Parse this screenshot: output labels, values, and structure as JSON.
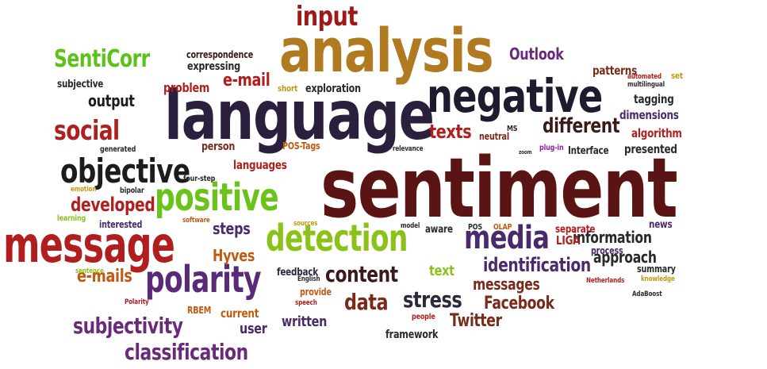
{
  "word_cloud": {
    "words": [
      {
        "id": "sentiment",
        "text": "sentiment",
        "color": "#5a1414"
      },
      {
        "id": "language",
        "text": "language",
        "color": "#2a1f3d"
      },
      {
        "id": "analysis",
        "text": "analysis",
        "color": "#b07a20"
      },
      {
        "id": "negative",
        "text": "negative",
        "color": "#1c1c2e"
      },
      {
        "id": "message",
        "text": "message",
        "color": "#b01e1e"
      },
      {
        "id": "positive",
        "text": "positive",
        "color": "#6bc21a"
      },
      {
        "id": "detection",
        "text": "detection",
        "color": "#8bc21a"
      },
      {
        "id": "objective",
        "text": "objective",
        "color": "#1c1c1c"
      },
      {
        "id": "polarity",
        "text": "polarity",
        "color": "#5a2a7a"
      },
      {
        "id": "media",
        "text": "media",
        "color": "#4a2a6a"
      },
      {
        "id": "input",
        "text": "input",
        "color": "#a01818"
      },
      {
        "id": "senticorr",
        "text": "SentiCorr",
        "color": "#5cc21a"
      },
      {
        "id": "social",
        "text": "social",
        "color": "#b01e1e"
      },
      {
        "id": "different",
        "text": "different",
        "color": "#3a1a1a"
      },
      {
        "id": "content",
        "text": "content",
        "color": "#3a1a1a"
      },
      {
        "id": "classification",
        "text": "classification",
        "color": "#6a2a7a"
      },
      {
        "id": "subjectivity",
        "text": "subjectivity",
        "color": "#6a2a7a"
      },
      {
        "id": "stress",
        "text": "stress",
        "color": "#2a2a3a"
      },
      {
        "id": "data",
        "text": "data",
        "color": "#7a2a1a"
      },
      {
        "id": "developed",
        "text": "developed",
        "color": "#b01e1e"
      },
      {
        "id": "identification",
        "text": "identification",
        "color": "#4a2a6a"
      },
      {
        "id": "texts",
        "text": "texts",
        "color": "#b01e1e"
      },
      {
        "id": "output",
        "text": "output",
        "color": "#1c1c1c"
      },
      {
        "id": "e-mail",
        "text": "e-mail",
        "color": "#b01e1e"
      },
      {
        "id": "e-mails",
        "text": "e-mails",
        "color": "#c05a10"
      },
      {
        "id": "hyves",
        "text": "Hyves",
        "color": "#c05a10"
      },
      {
        "id": "facebook",
        "text": "Facebook",
        "color": "#7a2a1a"
      },
      {
        "id": "twitter",
        "text": "Twitter",
        "color": "#7a2a1a"
      },
      {
        "id": "messages",
        "text": "messages",
        "color": "#7a2a1a"
      },
      {
        "id": "information",
        "text": "information",
        "color": "#2a2a2a"
      },
      {
        "id": "approach",
        "text": "approach",
        "color": "#2a2a2a"
      },
      {
        "id": "outlook",
        "text": "Outlook",
        "color": "#6a2a7a"
      },
      {
        "id": "written",
        "text": "written",
        "color": "#4a2a6a"
      },
      {
        "id": "steps",
        "text": "steps",
        "color": "#4a2a6a"
      },
      {
        "id": "text",
        "text": "text",
        "color": "#8bc21a"
      },
      {
        "id": "user",
        "text": "user",
        "color": "#4a2a6a"
      },
      {
        "id": "problem",
        "text": "problem",
        "color": "#b01e1e"
      },
      {
        "id": "exploration",
        "text": "exploration",
        "color": "#2a2a2a"
      },
      {
        "id": "subjective",
        "text": "subjective",
        "color": "#2a2a2a"
      },
      {
        "id": "expressing",
        "text": "expressing",
        "color": "#2a2a2a"
      },
      {
        "id": "correspondence",
        "text": "correspondence",
        "color": "#3a1a1a"
      },
      {
        "id": "patterns",
        "text": "patterns",
        "color": "#7a2a1a"
      },
      {
        "id": "tagging",
        "text": "tagging",
        "color": "#2a2a2a"
      },
      {
        "id": "dimensions",
        "text": "dimensions",
        "color": "#4a2a6a"
      },
      {
        "id": "algorithm",
        "text": "algorithm",
        "color": "#b01e1e"
      },
      {
        "id": "presented",
        "text": "presented",
        "color": "#2a2a2a"
      },
      {
        "id": "languages",
        "text": "languages",
        "color": "#b01e1e"
      },
      {
        "id": "person",
        "text": "person",
        "color": "#7a2a1a"
      },
      {
        "id": "pos-tags",
        "text": "POS-Tags",
        "color": "#c05a10"
      },
      {
        "id": "short",
        "text": "short",
        "color": "#c09a10"
      },
      {
        "id": "interested",
        "text": "interested",
        "color": "#4a2a6a"
      },
      {
        "id": "liga",
        "text": "LIGA",
        "color": "#b01e1e"
      },
      {
        "id": "separate",
        "text": "separate",
        "color": "#b01e1e"
      },
      {
        "id": "news",
        "text": "news",
        "color": "#4a2a6a"
      },
      {
        "id": "current",
        "text": "current",
        "color": "#c05a10"
      },
      {
        "id": "framework",
        "text": "framework",
        "color": "#2a2a2a"
      },
      {
        "id": "feedback",
        "text": "feedback",
        "color": "#2a2a3a"
      },
      {
        "id": "provide",
        "text": "provide",
        "color": "#c05a10"
      },
      {
        "id": "rbem",
        "text": "RBEM",
        "color": "#c05a10"
      },
      {
        "id": "aware",
        "text": "aware",
        "color": "#2a2a2a"
      },
      {
        "id": "summary",
        "text": "summary",
        "color": "#2a2a2a"
      },
      {
        "id": "neutral",
        "text": "neutral",
        "color": "#7a2a1a"
      },
      {
        "id": "ms",
        "text": "MS",
        "color": "#2a2a2a"
      },
      {
        "id": "process",
        "text": "process",
        "color": "#4a2a6a"
      },
      {
        "id": "interface",
        "text": "Interface",
        "color": "#2a2a2a"
      },
      {
        "id": "plug-in",
        "text": "plug-in",
        "color": "#8a2a9a"
      },
      {
        "id": "set",
        "text": "set",
        "color": "#c09a10"
      },
      {
        "id": "automated",
        "text": "automated",
        "color": "#b01e1e"
      },
      {
        "id": "multilingual",
        "text": "multilingual",
        "color": "#2a2a2a"
      },
      {
        "id": "bipolar",
        "text": "bipolar",
        "color": "#2a2a2a"
      },
      {
        "id": "four-step",
        "text": "four-step",
        "color": "#2a2a2a"
      },
      {
        "id": "generated",
        "text": "generated",
        "color": "#2a2a2a"
      },
      {
        "id": "emotion",
        "text": "emotion",
        "color": "#c09a10"
      },
      {
        "id": "learning",
        "text": "learning",
        "color": "#8bc21a"
      },
      {
        "id": "software",
        "text": "software",
        "color": "#c05a10"
      },
      {
        "id": "sources",
        "text": "sources",
        "color": "#c09a10"
      },
      {
        "id": "model",
        "text": "model",
        "color": "#2a2a2a"
      },
      {
        "id": "pos",
        "text": "POS",
        "color": "#2a2a2a"
      },
      {
        "id": "olap",
        "text": "OLAP",
        "color": "#c05a10"
      },
      {
        "id": "relevance",
        "text": "relevance",
        "color": "#2a2a2a"
      },
      {
        "id": "zoom",
        "text": "zoom",
        "color": "#2a2a2a"
      },
      {
        "id": "sentence",
        "text": "sentence",
        "color": "#8bc21a"
      },
      {
        "id": "english",
        "text": "English",
        "color": "#2a2a2a"
      },
      {
        "id": "speech",
        "text": "speech",
        "color": "#b01e1e"
      },
      {
        "id": "people",
        "text": "people",
        "color": "#b01e1e"
      },
      {
        "id": "polarity_small",
        "text": "Polarity",
        "color": "#b01e1e"
      },
      {
        "id": "netherlands",
        "text": "Netherlands",
        "color": "#b01e1e"
      },
      {
        "id": "knowledge",
        "text": "knowledge",
        "color": "#c09a10"
      },
      {
        "id": "adaboost",
        "text": "AdaBoost",
        "color": "#2a2a2a"
      }
    ]
  }
}
